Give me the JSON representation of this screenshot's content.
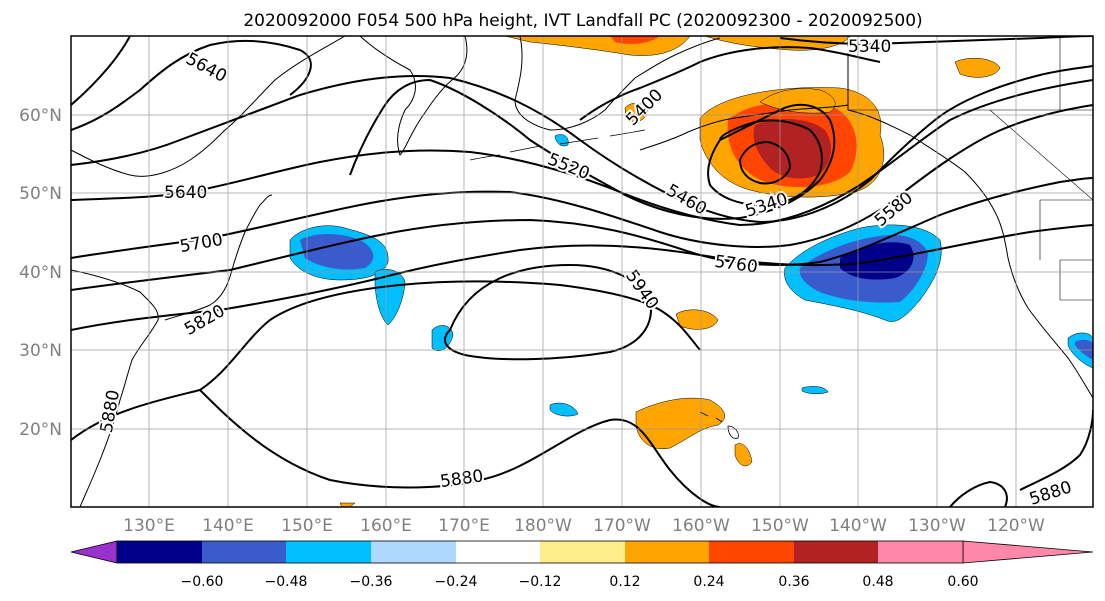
{
  "title": "2020092000 F054 500 hPa height, IVT Landfall PC (2020092300 - 2020092500)",
  "lat_labels": [
    "60°N",
    "50°N",
    "40°N",
    "30°N",
    "20°N"
  ],
  "lon_labels": [
    "130°E",
    "140°E",
    "150°E",
    "160°E",
    "170°E",
    "180°W",
    "170°W",
    "160°W",
    "150°W",
    "140°W",
    "130°W",
    "120°W"
  ],
  "contour_labels": [
    "5640",
    "5340",
    "5400",
    "5520",
    "5460",
    "5340",
    "5580",
    "5640",
    "5700",
    "5760",
    "5940",
    "5820",
    "5880",
    "5880",
    "5880"
  ],
  "colorbar": {
    "colors": [
      "#9932CC",
      "#00008B",
      "#3A5BCC",
      "#00BFFF",
      "#ADD8FF",
      "#FFFFFF",
      "#FFEC8B",
      "#FFA500",
      "#FF4500",
      "#B22222",
      "#FF88AA"
    ],
    "tick_labels": [
      "−0.60",
      "−0.48",
      "−0.36",
      "−0.24",
      "−0.12",
      "0.12",
      "0.24",
      "0.36",
      "0.48",
      "0.60"
    ]
  }
}
